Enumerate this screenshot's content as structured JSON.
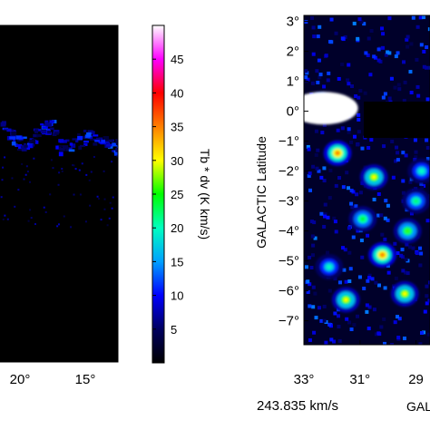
{
  "left_panel": {
    "xticks": [
      "20°",
      "15°"
    ]
  },
  "colorbar": {
    "label": "Tb * dv  (K km/s)",
    "ticks": [
      "5",
      "10",
      "15",
      "20",
      "25",
      "30",
      "35",
      "40",
      "45"
    ],
    "colors": [
      "#000000",
      "#000060",
      "#0000ff",
      "#00a0ff",
      "#00ffc0",
      "#00ff00",
      "#ffff00",
      "#ff7f00",
      "#ff0000",
      "#ff00ff",
      "#ffffff"
    ]
  },
  "right_panel": {
    "ylabel": "GALACTIC Latitude",
    "yticks": [
      "3°",
      "2°",
      "1°",
      "0°",
      "−1°",
      "−2°",
      "−3°",
      "−4°",
      "−5°",
      "−6°",
      "−7°"
    ],
    "xticks": [
      "33°",
      "31°",
      "29"
    ],
    "xlabel_partial": "GAL",
    "velocity": "243.835 km/s"
  },
  "chart_data": {
    "type": "heatmap",
    "title": "",
    "quantity": "Tb * dv",
    "units": "K km/s",
    "color_scale_range": [
      0,
      50
    ],
    "color_scale_ticks": [
      5,
      10,
      15,
      20,
      25,
      30,
      35,
      40,
      45
    ],
    "panels": [
      {
        "panel": "left",
        "xticks_deg": [
          20,
          15
        ],
        "features": [
          {
            "description": "filamentary emission band",
            "peak_approx": 12
          }
        ]
      },
      {
        "panel": "right",
        "xlabel": "GAL",
        "ylabel": "GALACTIC Latitude",
        "x_range_deg": [
          33,
          28.5
        ],
        "y_range_deg": [
          -7.8,
          3.2
        ],
        "xticks_deg": [
          33,
          31,
          29
        ],
        "yticks_deg": [
          3,
          2,
          1,
          0,
          -1,
          -2,
          -3,
          -4,
          -5,
          -6,
          -7
        ],
        "velocity_km_s": 243.835,
        "blobs": [
          {
            "l": 32.4,
            "b": 0.2,
            "value": 50
          },
          {
            "l": 31.8,
            "b": -1.4,
            "value": 35
          },
          {
            "l": 30.5,
            "b": -2.2,
            "value": 30
          },
          {
            "l": 30.9,
            "b": -3.6,
            "value": 24
          },
          {
            "l": 30.2,
            "b": -4.8,
            "value": 35
          },
          {
            "l": 29.4,
            "b": -6.1,
            "value": 30
          },
          {
            "l": 32.1,
            "b": -5.2,
            "value": 20
          },
          {
            "l": 31.5,
            "b": -6.3,
            "value": 30
          },
          {
            "l": 29.0,
            "b": -3.0,
            "value": 22
          },
          {
            "l": 29.3,
            "b": -4.0,
            "value": 26
          },
          {
            "l": 28.8,
            "b": -2.0,
            "value": 20
          }
        ]
      }
    ]
  }
}
